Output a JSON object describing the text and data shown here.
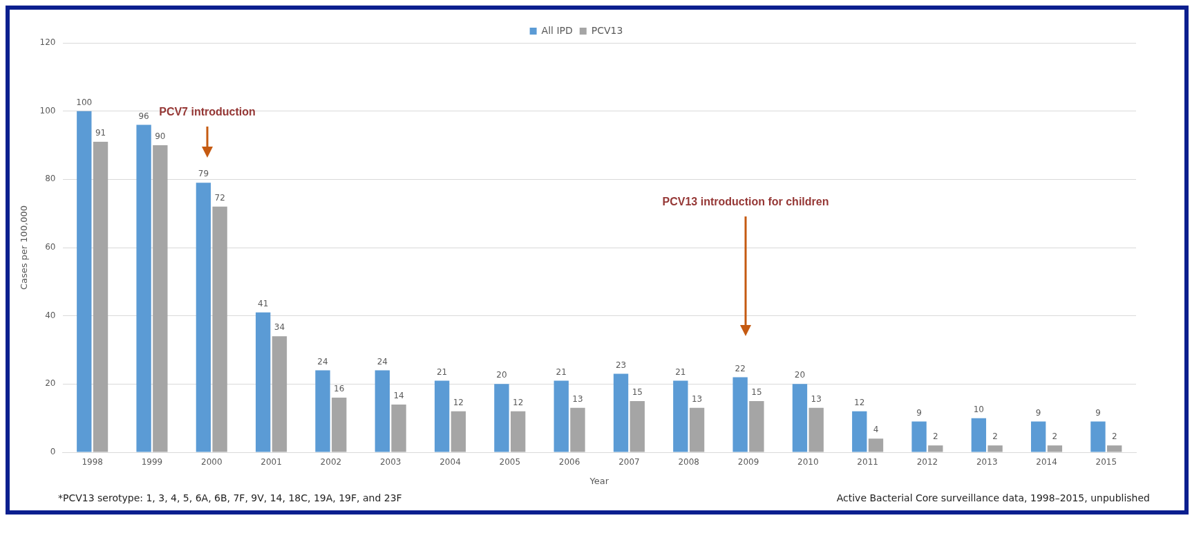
{
  "chart_data": {
    "type": "bar",
    "xlabel": "Year",
    "ylabel": "Cases per 100,000",
    "categories": [
      "1998",
      "1999",
      "2000",
      "2001",
      "2002",
      "2003",
      "2004",
      "2005",
      "2006",
      "2007",
      "2008",
      "2009",
      "2010",
      "2011",
      "2012",
      "2013",
      "2014",
      "2015"
    ],
    "series": [
      {
        "name": "All IPD",
        "color": "#5b9bd5",
        "values": [
          100,
          96,
          79,
          41,
          24,
          24,
          21,
          20,
          21,
          23,
          21,
          22,
          20,
          12,
          9,
          10,
          9,
          9
        ]
      },
      {
        "name": "PCV13",
        "color": "#a5a5a5",
        "values": [
          91,
          90,
          72,
          34,
          16,
          14,
          12,
          12,
          13,
          15,
          13,
          15,
          13,
          4,
          2,
          2,
          2,
          2
        ]
      }
    ],
    "ylim": [
      0,
      120
    ],
    "yticks": [
      0,
      20,
      40,
      60,
      80,
      100,
      120
    ],
    "grid": "y",
    "legend": "top",
    "data_labels": true,
    "annotations": [
      "PCV7 introduction",
      "PCV13 introduction for children",
      "*PCV13 serotype: 1, 3, 4, 5, 6A, 6B, 7F, 9V, 14, 18C, 19A, 19F, and 23F",
      "Active Bacterial Core surveillance data, 1998–2015, unpublished"
    ]
  }
}
